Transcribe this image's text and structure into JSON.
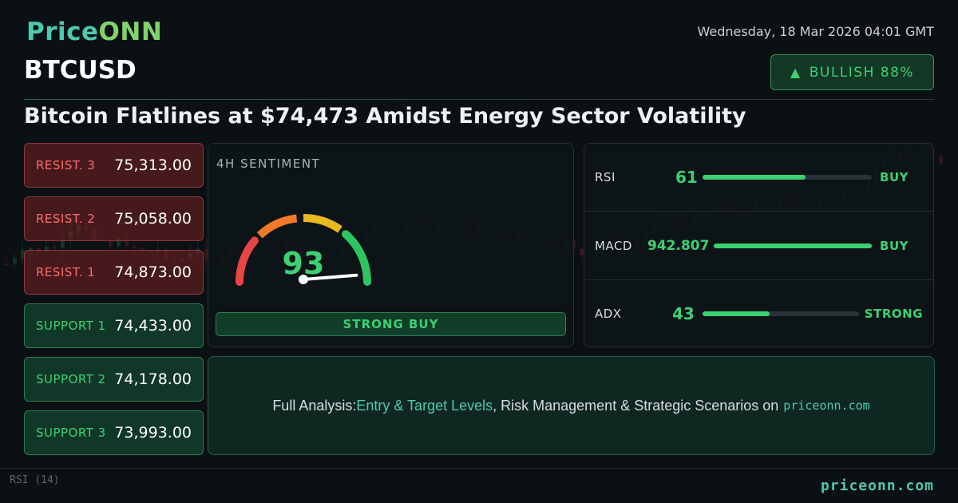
{
  "brand": {
    "name_part1": "Price",
    "name_part2": "ONN"
  },
  "datetime": "Wednesday, 18 Mar 2026 04:01 GMT",
  "ticker": "BTCUSD",
  "bias": {
    "label": "BULLISH 88%",
    "icon": "triangle-up-icon"
  },
  "headline": "Bitcoin Flatlines at $74,473 Amidst Energy Sector Volatility",
  "levels": [
    {
      "label": "RESIST. 3",
      "value": "75,313.00",
      "kind": "resistance"
    },
    {
      "label": "RESIST. 2",
      "value": "75,058.00",
      "kind": "resistance"
    },
    {
      "label": "RESIST. 1",
      "value": "74,873.00",
      "kind": "resistance"
    },
    {
      "label": "SUPPORT 1",
      "value": "74,433.00",
      "kind": "support"
    },
    {
      "label": "SUPPORT 2",
      "value": "74,178.00",
      "kind": "support"
    },
    {
      "label": "SUPPORT 3",
      "value": "73,993.00",
      "kind": "support"
    }
  ],
  "sentiment": {
    "title": "4H SENTIMENT",
    "score": "93",
    "score_value": 93,
    "verdict": "STRONG BUY"
  },
  "indicators": [
    {
      "name": "RSI",
      "value": "61",
      "signal": "BUY",
      "fill_fraction": 0.61
    },
    {
      "name": "MACD",
      "value": "942.807",
      "signal": "BUY",
      "fill_fraction": 1.0
    },
    {
      "name": "ADX",
      "value": "43",
      "signal": "STRONG",
      "fill_fraction": 0.43
    }
  ],
  "cta": {
    "prefix": "Full Analysis: ",
    "highlight": "Entry & Target Levels",
    "middle": ", Risk Management & Strategic Scenarios on",
    "site": "priceonn.com"
  },
  "background_chart": {
    "rsi_label": "RSI (14)"
  },
  "footer_site": "priceonn.com",
  "colors": {
    "accent_teal": "#4ec9b0",
    "bull_green": "#3bd172",
    "bear_red": "#ff6b6b"
  }
}
